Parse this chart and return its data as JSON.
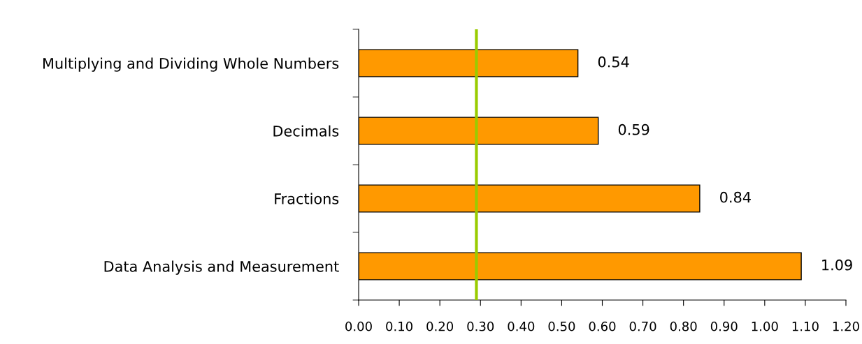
{
  "chart_data": {
    "type": "bar",
    "orientation": "horizontal",
    "categories": [
      "Multiplying and Dividing Whole Numbers",
      "Decimals",
      "Fractions",
      "Data Analysis and Measurement"
    ],
    "values": [
      0.54,
      0.59,
      0.84,
      1.09
    ],
    "color": "#ff9900",
    "xlim": [
      0,
      1.2
    ],
    "xticks": [
      {
        "value": 0,
        "label": "0.00"
      },
      {
        "value": 0.1,
        "label": "0.10"
      },
      {
        "value": 0.2,
        "label": "0.20"
      },
      {
        "value": 0.3,
        "label": "0.30"
      },
      {
        "value": 0.4,
        "label": "0.40"
      },
      {
        "value": 0.5,
        "label": "0.50"
      },
      {
        "value": 0.6,
        "label": "0.60"
      },
      {
        "value": 0.7,
        "label": "0.70"
      },
      {
        "value": 0.8,
        "label": "0.80"
      },
      {
        "value": 0.9,
        "label": "0.90"
      },
      {
        "value": 1.0,
        "label": "1.00"
      },
      {
        "value": 1.1,
        "label": "1.10"
      },
      {
        "value": 1.2,
        "label": "1.20"
      }
    ],
    "ref_lines": [
      {
        "axis": "x",
        "value": 0.29,
        "color": "#99cc00"
      }
    ],
    "data_labels": true,
    "grid": false,
    "legend": false
  }
}
